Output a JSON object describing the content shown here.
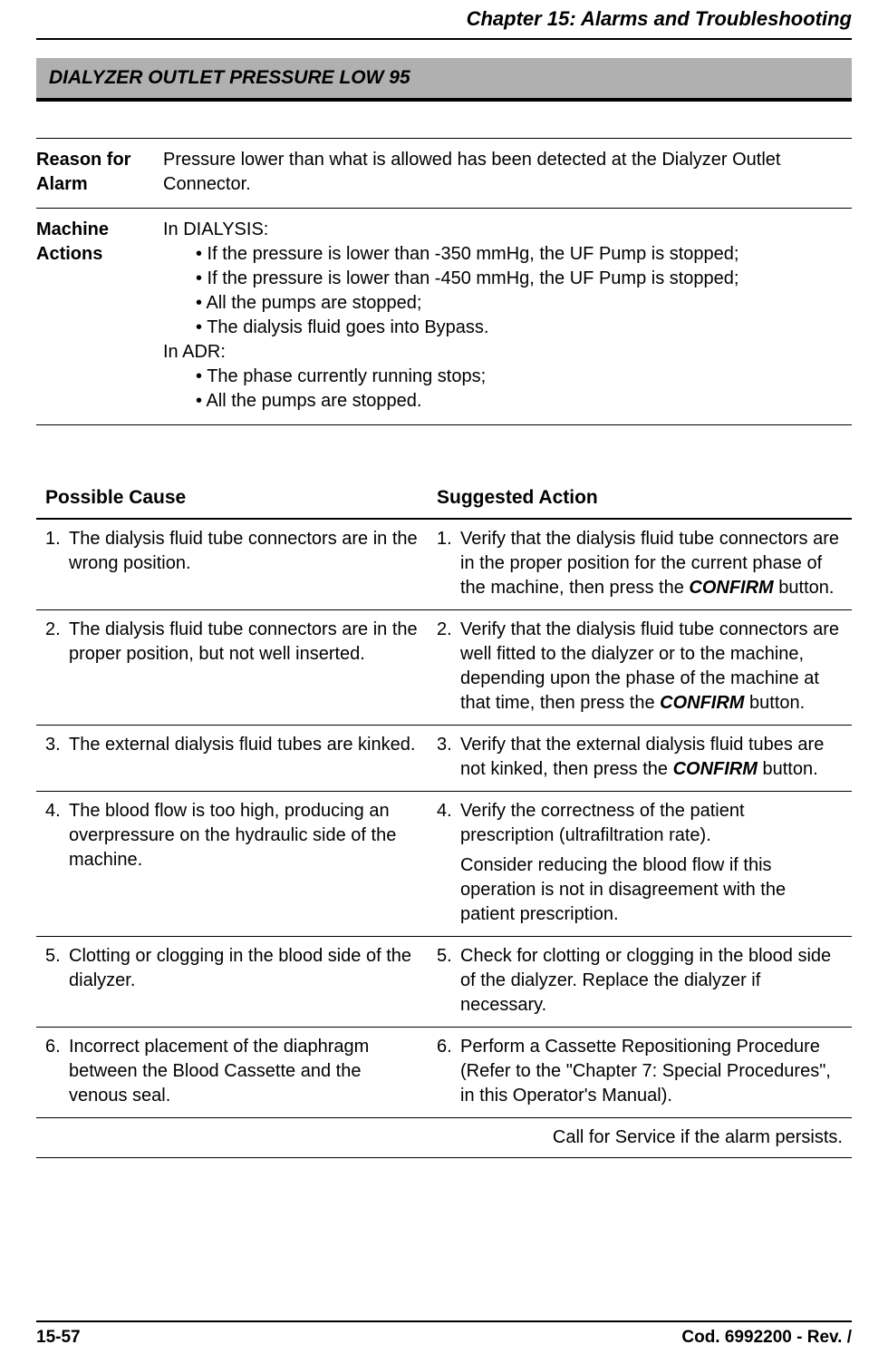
{
  "header": {
    "chapter_title": "Chapter 15: Alarms and Troubleshooting"
  },
  "alarm": {
    "banner_title": "DIALYZER OUTLET PRESSURE LOW 95"
  },
  "info": {
    "rows": [
      {
        "label": "Reason for Alarm",
        "content_type": "plain",
        "text": "Pressure lower than what is allowed has been detected at the Dialyzer Outlet Connector."
      },
      {
        "label": "Machine Actions",
        "content_type": "machine",
        "sections": [
          {
            "intro": "In DIALYSIS:",
            "bullets": [
              "• If the pressure is lower than -350 mmHg, the UF Pump is stopped;",
              "• If the pressure is lower than -450 mmHg, the UF Pump is stopped;",
              "• All the pumps are stopped;",
              "• The dialysis fluid goes into Bypass."
            ]
          },
          {
            "intro": "In ADR:",
            "bullets": [
              "• The phase currently running stops;",
              "• All the pumps are stopped."
            ]
          }
        ]
      }
    ]
  },
  "cause_action": {
    "headers": {
      "cause": "Possible Cause",
      "action": "Suggested Action"
    },
    "rows": [
      {
        "num": "1.",
        "cause": "The dialysis fluid tube connectors are in the wrong position.",
        "action_pre": "Verify that the dialysis fluid tube connectors are in the proper position for the current phase of the machine, then press the ",
        "action_bold": "CONFIRM",
        "action_post": " button.",
        "action_extra": ""
      },
      {
        "num": "2.",
        "cause": "The dialysis fluid tube connectors are in the proper position, but not well inserted.",
        "action_pre": "Verify that the dialysis fluid tube connectors are well fitted to the dialyzer or to the machine, depending upon the phase of the machine at that time, then press the ",
        "action_bold": "CONFIRM",
        "action_post": " button.",
        "action_extra": ""
      },
      {
        "num": "3.",
        "cause": "The external dialysis fluid tubes are kinked.",
        "action_pre": "Verify that the external dialysis fluid tubes are not kinked, then press the ",
        "action_bold": "CONFIRM",
        "action_post": " button.",
        "action_extra": ""
      },
      {
        "num": "4.",
        "cause": "The blood flow is too high, producing an overpressure on the hydraulic side of the machine.",
        "action_pre": "Verify the correctness of the patient prescription (ultrafiltration rate).",
        "action_bold": "",
        "action_post": "",
        "action_extra": "Consider reducing the blood flow if this operation is not in disagreement with the patient prescription."
      },
      {
        "num": "5.",
        "cause": "Clotting or clogging in the blood side of the dialyzer.",
        "action_pre": "Check for clotting or clogging in the blood side of the dialyzer. Replace the dialyzer if necessary.",
        "action_bold": "",
        "action_post": "",
        "action_extra": ""
      },
      {
        "num": "6.",
        "cause": "Incorrect placement of the diaphragm between the Blood Cassette and the venous seal.",
        "action_pre": "Perform a Cassette Repositioning Procedure (Refer to the \"Chapter 7: Special Procedures\", in this Operator's Manual).",
        "action_bold": "",
        "action_post": "",
        "action_extra": ""
      }
    ],
    "footer_note": "Call for Service if the alarm persists."
  },
  "footer": {
    "page_number": "15-57",
    "doc_code": "Cod. 6992200 - Rev. /"
  },
  "colors": {
    "banner_bg": "#b0b0b0",
    "text": "#000000",
    "background": "#ffffff"
  }
}
